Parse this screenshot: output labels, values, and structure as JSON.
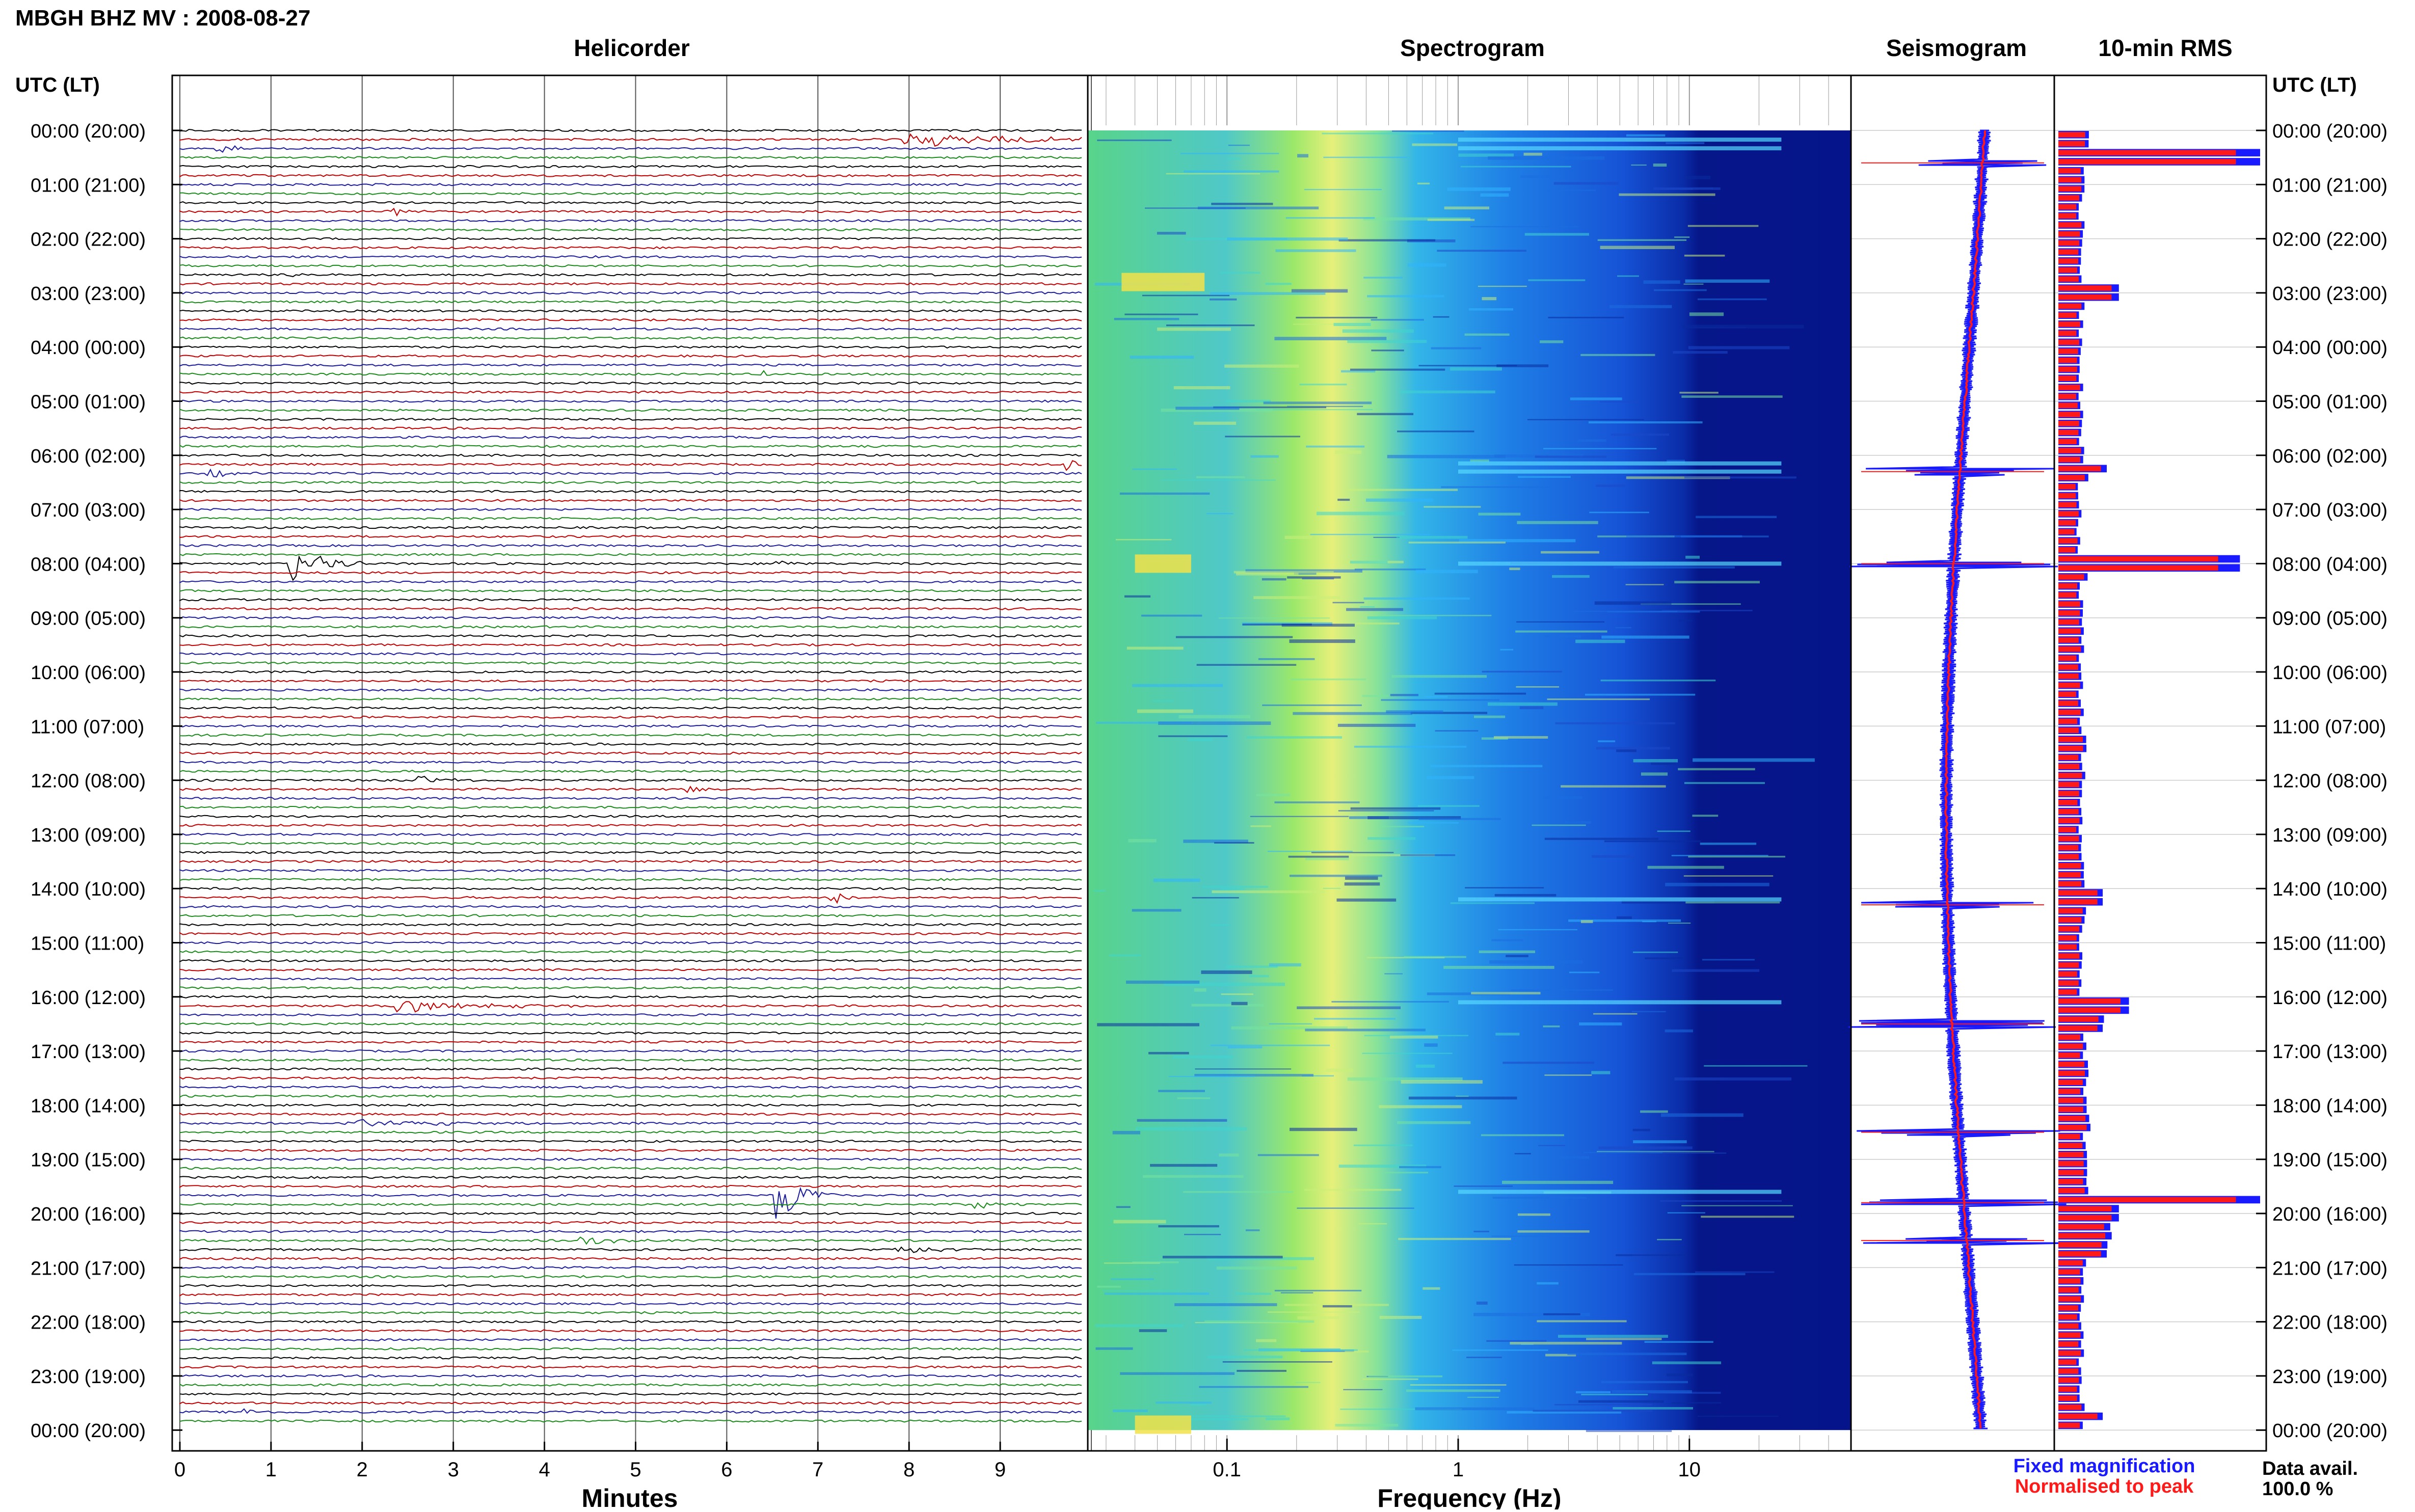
{
  "header": {
    "station_title": "MBGH BHZ MV : 2008-08-27",
    "left_axis_title": "UTC (LT)",
    "right_axis_title": "UTC (LT)"
  },
  "panels": {
    "helicorder": "Helicorder",
    "spectrogram": "Spectrogram",
    "seismogram": "Seismogram",
    "rms": "10-min RMS"
  },
  "axes": {
    "helicorder_xlabel": "Minutes",
    "spectrogram_xlabel": "Frequency (Hz)",
    "minute_ticks": [
      "0",
      "1",
      "2",
      "3",
      "4",
      "5",
      "6",
      "7",
      "8",
      "9"
    ],
    "frequency_ticks": [
      "0.1",
      "1",
      "10"
    ],
    "time_labels": [
      "00:00 (20:00)",
      "01:00 (21:00)",
      "02:00 (22:00)",
      "03:00 (23:00)",
      "04:00 (00:00)",
      "05:00 (01:00)",
      "06:00 (02:00)",
      "07:00 (03:00)",
      "08:00 (04:00)",
      "09:00 (05:00)",
      "10:00 (06:00)",
      "11:00 (07:00)",
      "12:00 (08:00)",
      "13:00 (09:00)",
      "14:00 (10:00)",
      "15:00 (11:00)",
      "16:00 (12:00)",
      "17:00 (13:00)",
      "18:00 (14:00)",
      "19:00 (15:00)",
      "20:00 (16:00)",
      "21:00 (17:00)",
      "22:00 (18:00)",
      "23:00 (19:00)",
      "00:00 (20:00)"
    ]
  },
  "legend": {
    "fixed_label": "Fixed magnification",
    "fixed_color": "#1a1aff",
    "normalised_label": "Normalised to peak",
    "normalised_color": "#ff1a1a"
  },
  "availability": {
    "label": "Data avail.",
    "value": "100.0 %"
  },
  "colors": {
    "trace_cycle": [
      "#000000",
      "#c00000",
      "#1a1a9a",
      "#1a8a1a"
    ],
    "rms_fixed": "#1a1aff",
    "rms_normalised": "#ff1a1a"
  },
  "chart_data": [
    {
      "type": "line",
      "title": "Helicorder",
      "xlabel": "Minutes",
      "xlim": [
        0,
        10
      ],
      "rows": 144,
      "row_minutes": 10,
      "events": [
        {
          "hour": 0.33,
          "minute": 0.4,
          "amp": 0.5,
          "dur": 0.4
        },
        {
          "hour": 0.17,
          "minute": 8.0,
          "amp": 0.6,
          "dur": 2.5
        },
        {
          "hour": 1.5,
          "minute": 2.3,
          "amp": 0.3,
          "dur": 0.6
        },
        {
          "hour": 2.7,
          "minute": 1.1,
          "amp": 0.3,
          "dur": 0.4
        },
        {
          "hour": 4.5,
          "minute": 6.4,
          "amp": 0.25,
          "dur": 0.4
        },
        {
          "hour": 6.15,
          "minute": 9.8,
          "amp": 0.5,
          "dur": 0.4
        },
        {
          "hour": 6.3,
          "minute": 0.3,
          "amp": 0.4,
          "dur": 0.7
        },
        {
          "hour": 8.0,
          "minute": 1.2,
          "amp": 1.4,
          "dur": 0.8
        },
        {
          "hour": 8.0,
          "minute": 6.6,
          "amp": 0.3,
          "dur": 0.3
        },
        {
          "hour": 12.0,
          "minute": 2.6,
          "amp": 0.3,
          "dur": 0.8
        },
        {
          "hour": 12.2,
          "minute": 5.6,
          "amp": 0.25,
          "dur": 0.4
        },
        {
          "hour": 14.2,
          "minute": 7.2,
          "amp": 0.5,
          "dur": 0.6
        },
        {
          "hour": 16.1,
          "minute": 2.4,
          "amp": 0.45,
          "dur": 2.0
        },
        {
          "hour": 18.3,
          "minute": 1.8,
          "amp": 0.3,
          "dur": 2.5
        },
        {
          "hour": 19.6,
          "minute": 6.6,
          "amp": 1.8,
          "dur": 0.7
        },
        {
          "hour": 19.9,
          "minute": 8.8,
          "amp": 0.35,
          "dur": 0.6
        },
        {
          "hour": 20.5,
          "minute": 4.4,
          "amp": 0.35,
          "dur": 0.8
        },
        {
          "hour": 20.7,
          "minute": 7.9,
          "amp": 0.35,
          "dur": 1.3
        },
        {
          "hour": 23.6,
          "minute": 0.7,
          "amp": 0.25,
          "dur": 0.5
        }
      ]
    },
    {
      "type": "heatmap",
      "title": "Spectrogram",
      "xlabel": "Frequency (Hz)",
      "xscale": "log",
      "xlim": [
        0.025,
        50
      ],
      "ylim_hours": [
        0,
        24
      ],
      "peak_band_hz": [
        0.2,
        0.45
      ]
    },
    {
      "type": "line",
      "title": "Seismogram",
      "series": [
        {
          "name": "Fixed magnification",
          "color": "#1a1aff"
        },
        {
          "name": "Normalised to peak",
          "color": "#ff1a1a"
        }
      ],
      "spikes_hours": [
        0.6,
        6.3,
        8.0,
        14.3,
        16.5,
        18.5,
        19.8,
        20.5
      ]
    },
    {
      "type": "bar",
      "title": "10-min RMS",
      "series": [
        {
          "name": "Fixed magnification",
          "color": "#1a1aff"
        },
        {
          "name": "Normalised to peak",
          "color": "#ff1a1a"
        }
      ],
      "rms_profile": [
        [
          0,
          14
        ],
        [
          0.5,
          100
        ],
        [
          1,
          12
        ],
        [
          2,
          10
        ],
        [
          2.8,
          18
        ],
        [
          3.0,
          30
        ],
        [
          3.3,
          12
        ],
        [
          4,
          10
        ],
        [
          5,
          10
        ],
        [
          6,
          10
        ],
        [
          6.2,
          24
        ],
        [
          6.5,
          12
        ],
        [
          7,
          9
        ],
        [
          8,
          90
        ],
        [
          8.3,
          12
        ],
        [
          9,
          10
        ],
        [
          10,
          10
        ],
        [
          11,
          11
        ],
        [
          12,
          13
        ],
        [
          13,
          10
        ],
        [
          14.2,
          22
        ],
        [
          14.5,
          11
        ],
        [
          15,
          10
        ],
        [
          16.2,
          35
        ],
        [
          16.6,
          22
        ],
        [
          17,
          12
        ],
        [
          18,
          14
        ],
        [
          18.5,
          18
        ],
        [
          19,
          12
        ],
        [
          19.8,
          100
        ],
        [
          20,
          30
        ],
        [
          20.8,
          24
        ],
        [
          21,
          12
        ],
        [
          22,
          10
        ],
        [
          23,
          10
        ],
        [
          23.8,
          22
        ],
        [
          24,
          12
        ]
      ]
    }
  ]
}
